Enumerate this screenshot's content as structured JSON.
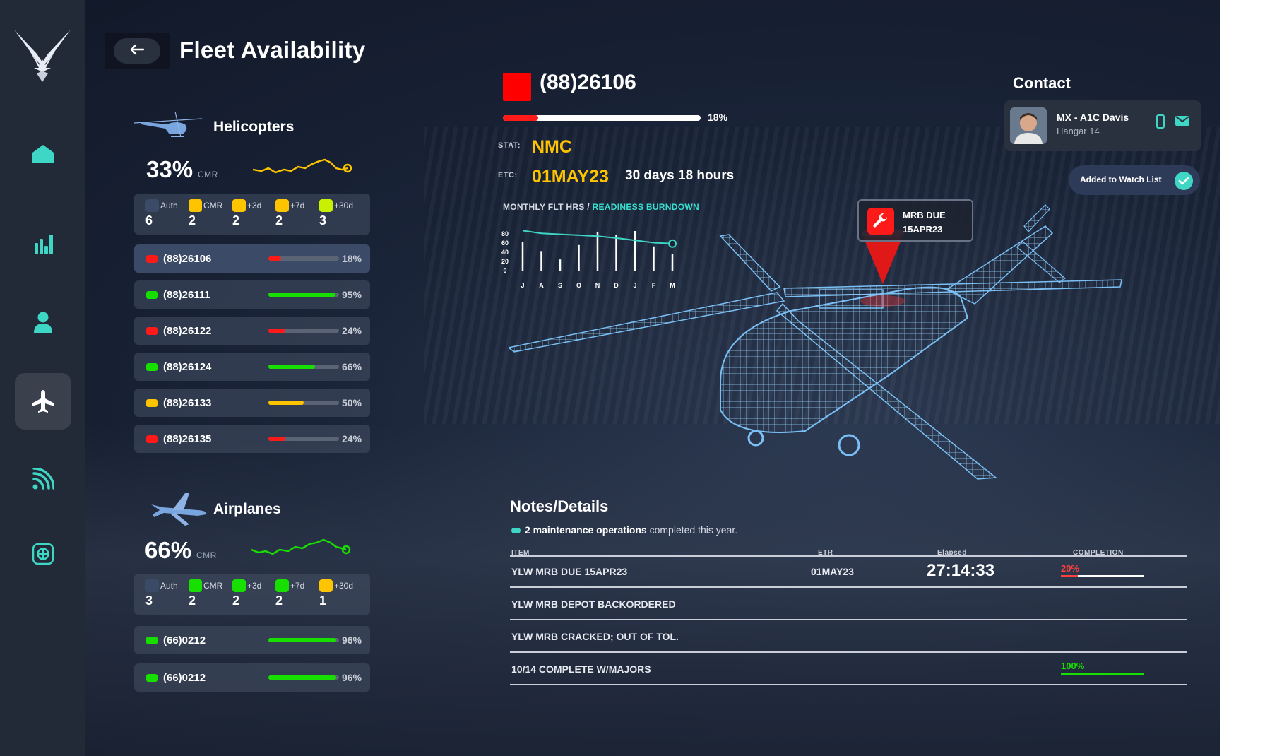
{
  "header": {
    "title": "Fleet Availability",
    "back_icon": "arrow-left-icon"
  },
  "sidebar": {
    "logo": "air-force-wings-logo",
    "items": [
      {
        "name": "home",
        "icon": "home-icon",
        "active": false
      },
      {
        "name": "analytics",
        "icon": "bar-chart-icon",
        "active": false
      },
      {
        "name": "personnel",
        "icon": "person-icon",
        "active": false
      },
      {
        "name": "fleet",
        "icon": "airplane-icon",
        "active": true
      },
      {
        "name": "signal",
        "icon": "signal-icon",
        "active": false
      },
      {
        "name": "grid",
        "icon": "grid-icon",
        "active": false
      }
    ],
    "accent": "#3ed6c4"
  },
  "helicopters": {
    "title": "Helicopters",
    "cmr_pct": "33%",
    "cmr_label": "CMR",
    "stats": [
      {
        "label": "Auth",
        "value": "6",
        "color": "#3b4a66"
      },
      {
        "label": "CMR",
        "value": "2",
        "color": "#ffc400"
      },
      {
        "label": "+3d",
        "value": "2",
        "color": "#ffc400"
      },
      {
        "label": "+7d",
        "value": "2",
        "color": "#ffc400"
      },
      {
        "label": "+30d",
        "value": "3",
        "color": "#c8f000"
      }
    ],
    "rows": [
      {
        "id": "(88)26106",
        "pct": "18%",
        "value": 0.18,
        "status": "#ff1a1a",
        "selected": true
      },
      {
        "id": "(88)26111",
        "pct": "95%",
        "value": 0.95,
        "status": "#17e000",
        "selected": false
      },
      {
        "id": "(88)26122",
        "pct": "24%",
        "value": 0.24,
        "status": "#ff1a1a",
        "selected": false
      },
      {
        "id": "(88)26124",
        "pct": "66%",
        "value": 0.66,
        "status": "#17e000",
        "selected": false
      },
      {
        "id": "(88)26133",
        "pct": "50%",
        "value": 0.5,
        "status": "#ffc400",
        "selected": false
      },
      {
        "id": "(88)26135",
        "pct": "24%",
        "value": 0.24,
        "status": "#ff1a1a",
        "selected": false
      }
    ],
    "trend_color": "#ffc400"
  },
  "airplanes": {
    "title": "Airplanes",
    "cmr_pct": "66%",
    "cmr_label": "CMR",
    "stats": [
      {
        "label": "Auth",
        "value": "3",
        "color": "#3b4a66"
      },
      {
        "label": "CMR",
        "value": "2",
        "color": "#17e000"
      },
      {
        "label": "+3d",
        "value": "2",
        "color": "#17e000"
      },
      {
        "label": "+7d",
        "value": "2",
        "color": "#17e000"
      },
      {
        "label": "+30d",
        "value": "1",
        "color": "#ffc400"
      }
    ],
    "rows": [
      {
        "id": "(66)0212",
        "pct": "96%",
        "value": 0.96,
        "status": "#17e000"
      },
      {
        "id": "(66)0212",
        "pct": "96%",
        "value": 0.96,
        "status": "#17e000"
      }
    ],
    "trend_color": "#17e000"
  },
  "detail": {
    "id": "(88)26106",
    "status_color": "#ff0000",
    "progress_pct": "18%",
    "progress": 0.18,
    "stat_label": "STAT:",
    "stat_value": "NMC",
    "etc_label": "ETC:",
    "etc_value": "01MAY23",
    "etc_remaining": "30 days 18 hours",
    "chart_title": "MONTHLY FLT HRS /",
    "chart_title_accent": "READINESS BURNDOWN",
    "mrb_title": "MRB DUE",
    "mrb_date": "15APR23",
    "mrb_icon": "wrench-icon"
  },
  "chart_data": {
    "type": "bar",
    "title": "MONTHLY FLT HRS / READINESS BURNDOWN",
    "categories": [
      "J",
      "A",
      "S",
      "O",
      "N",
      "D",
      "J",
      "F",
      "M"
    ],
    "yticks": [
      "80",
      "60",
      "40",
      "20",
      "0"
    ],
    "ylim": [
      0,
      80
    ],
    "series": [
      {
        "type": "bar",
        "values": [
          62,
          42,
          24,
          55,
          82,
          76,
          85,
          52,
          36
        ]
      },
      {
        "type": "line",
        "values": [
          86,
          80,
          78,
          76,
          74,
          70,
          65,
          60,
          58
        ]
      }
    ]
  },
  "contact": {
    "title": "Contact",
    "name": "MX - A1C Davis",
    "location": "Hangar 14",
    "phone_icon": "phone-icon",
    "mail_icon": "mail-icon",
    "watch_label": "Added to Watch List",
    "watch_icon": "check-icon"
  },
  "notes": {
    "title": "Notes/Details",
    "summary_bold": "2 maintenance operations",
    "summary_rest": " completed this year.",
    "columns": [
      "ITEM",
      "ETR",
      "Elapsed",
      "COMPLETION"
    ],
    "rows": [
      {
        "item": "YLW MRB DUE 15APR23",
        "etr": "01MAY23",
        "elapsed": "27:14:33",
        "completion": "20%",
        "completion_value": 0.2,
        "completion_color": "#ff4040"
      },
      {
        "item": "YLW MRB DEPOT BACKORDERED",
        "etr": "",
        "elapsed": "",
        "completion": "",
        "completion_value": null,
        "completion_color": ""
      },
      {
        "item": "YLW MRB CRACKED; OUT OF TOL.",
        "etr": "",
        "elapsed": "",
        "completion": "",
        "completion_value": null,
        "completion_color": ""
      },
      {
        "item": "10/14 COMPLETE W/MAJORS",
        "etr": "",
        "elapsed": "",
        "completion": "100%",
        "completion_value": 1.0,
        "completion_color": "#17e000"
      }
    ]
  }
}
